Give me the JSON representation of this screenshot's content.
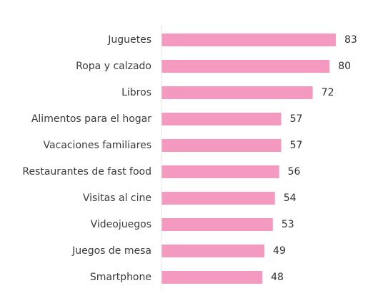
{
  "chart_data": {
    "type": "bar",
    "orientation": "horizontal",
    "categories": [
      "Juguetes",
      "Ropa y calzado",
      "Libros",
      "Alimentos para el hogar",
      "Vacaciones familiares",
      "Restaurantes de fast food",
      "Visitas al cine",
      "Videojuegos",
      "Juegos de mesa",
      "Smartphone"
    ],
    "values": [
      83,
      80,
      72,
      57,
      57,
      56,
      54,
      53,
      49,
      48
    ],
    "xlim": [
      0,
      100
    ],
    "bar_color": "#f49ac1",
    "grid": false,
    "legend": "none",
    "title": "",
    "xlabel": "",
    "ylabel": ""
  }
}
